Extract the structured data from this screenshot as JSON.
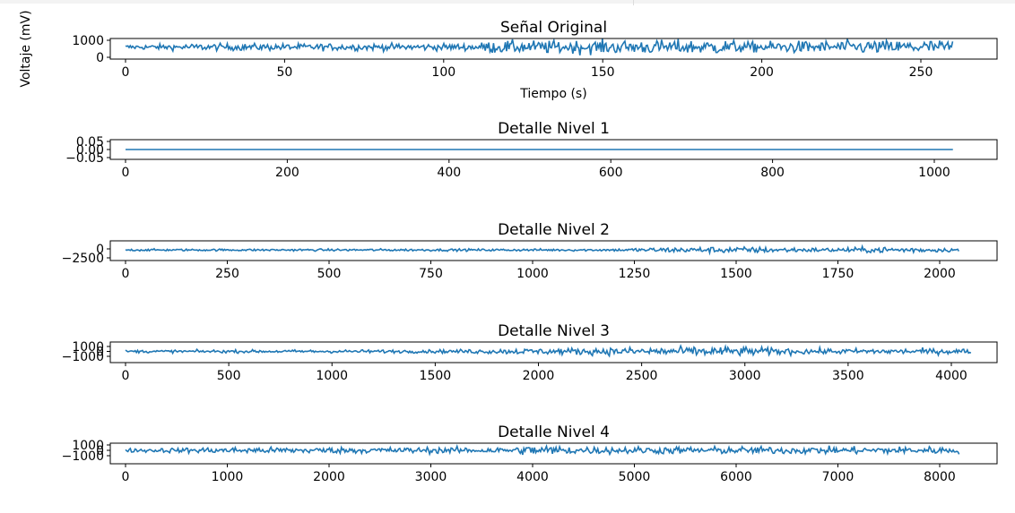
{
  "colors": {
    "series": "#1f77b4",
    "axes": "#000000",
    "background": "#ffffff"
  },
  "chart_data": [
    {
      "type": "line",
      "title": "Señal Original",
      "xlabel": "Tiempo (s)",
      "ylabel": "Voltaje (mV)",
      "xlim": [
        -10.5,
        270.5
      ],
      "ylim": [
        -100,
        1200
      ],
      "xticks": [
        "0",
        "50",
        "100",
        "150",
        "200",
        "250"
      ],
      "yticks": [
        "0",
        "1000"
      ],
      "series": [
        {
          "x_range": [
            0,
            260
          ],
          "n_points": 700,
          "center": 600,
          "amplitude_profile": [
            [
              0,
              120
            ],
            [
              25,
              180
            ],
            [
              110,
              180
            ],
            [
              115,
              330
            ],
            [
              190,
              380
            ],
            [
              195,
              260
            ],
            [
              200,
              300
            ],
            [
              260,
              380
            ]
          ]
        }
      ]
    },
    {
      "type": "line",
      "title": "Detalle Nivel 1",
      "xlabel": "",
      "ylabel": "",
      "xlim": [
        -55,
        1075
      ],
      "ylim": [
        -0.06,
        0.06
      ],
      "xticks": [
        "0",
        "200",
        "400",
        "600",
        "800",
        "1000"
      ],
      "yticks": [
        "0.05",
        "0.00",
        "−0.05"
      ],
      "series": [
        {
          "x_range": [
            0,
            1023
          ],
          "n_points": 2,
          "center": 0,
          "amplitude_profile": [
            [
              0,
              0
            ],
            [
              1023,
              0
            ]
          ]
        }
      ]
    },
    {
      "type": "line",
      "title": "Detalle Nivel 2",
      "xlabel": "",
      "ylabel": "",
      "xlim": [
        -100,
        2150
      ],
      "ylim": [
        -3000,
        800
      ],
      "xticks": [
        "0",
        "250",
        "500",
        "750",
        "1000",
        "1250",
        "1500",
        "1750",
        "2000"
      ],
      "yticks": [
        "0",
        "−2500"
      ],
      "series": [
        {
          "x_range": [
            0,
            2047
          ],
          "n_points": 700,
          "center": -300,
          "amplitude_profile": [
            [
              0,
              250
            ],
            [
              1200,
              300
            ],
            [
              1300,
              600
            ],
            [
              1500,
              800
            ],
            [
              1700,
              500
            ],
            [
              1900,
              800
            ],
            [
              2047,
              400
            ]
          ]
        }
      ]
    },
    {
      "type": "line",
      "title": "Detalle Nivel 3",
      "xlabel": "",
      "ylabel": "",
      "xlim": [
        -200,
        4300
      ],
      "ylim": [
        -1600,
        1600
      ],
      "xticks": [
        "0",
        "500",
        "1000",
        "1500",
        "2000",
        "2500",
        "3000",
        "3500",
        "4000"
      ],
      "yticks": [
        "1000",
        "0",
        "−1000"
      ],
      "series": [
        {
          "x_range": [
            0,
            4095
          ],
          "n_points": 700,
          "center": 0,
          "amplitude_profile": [
            [
              0,
              250
            ],
            [
              1500,
              300
            ],
            [
              1900,
              500
            ],
            [
              2900,
              900
            ],
            [
              3300,
              500
            ],
            [
              4095,
              500
            ]
          ]
        }
      ]
    },
    {
      "type": "line",
      "title": "Detalle Nivel 4",
      "xlabel": "",
      "ylabel": "",
      "xlim": [
        -400,
        8600
      ],
      "ylim": [
        -1600,
        1600
      ],
      "xticks": [
        "0",
        "1000",
        "2000",
        "3000",
        "4000",
        "5000",
        "6000",
        "7000",
        "8000"
      ],
      "yticks": [
        "1000",
        "0",
        "−1000"
      ],
      "series": [
        {
          "x_range": [
            0,
            8191
          ],
          "n_points": 700,
          "center": 0,
          "amplitude_profile": [
            [
              0,
              300
            ],
            [
              900,
              500
            ],
            [
              3800,
              500
            ],
            [
              4000,
              900
            ],
            [
              4500,
              600
            ],
            [
              8191,
              600
            ]
          ]
        }
      ]
    }
  ]
}
